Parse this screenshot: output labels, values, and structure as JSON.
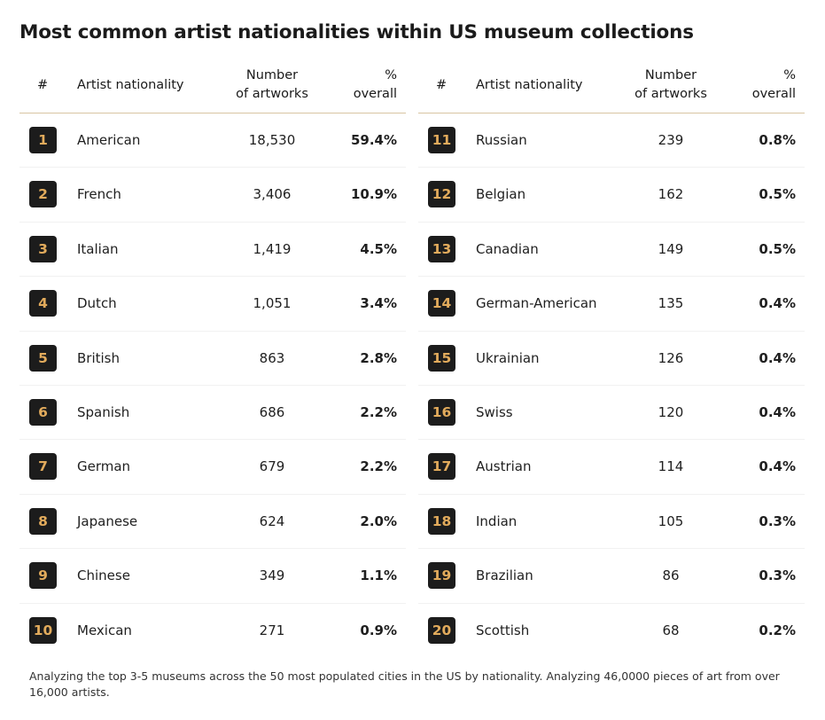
{
  "chart_data": {
    "type": "table",
    "title": "Most common artist nationalities within US museum collections",
    "columns": [
      "#",
      "Artist nationality",
      "Number of artworks",
      "% overall"
    ],
    "column_headers": {
      "rank": "#",
      "nationality": "Artist nationality",
      "count_line1": "Number",
      "count_line2": "of artworks",
      "pct_line1": "%",
      "pct_line2": "overall"
    },
    "rows": [
      {
        "rank": "1",
        "nationality": "American",
        "count": "18,530",
        "pct": "59.4%"
      },
      {
        "rank": "2",
        "nationality": "French",
        "count": "3,406",
        "pct": "10.9%"
      },
      {
        "rank": "3",
        "nationality": "Italian",
        "count": "1,419",
        "pct": "4.5%"
      },
      {
        "rank": "4",
        "nationality": "Dutch",
        "count": "1,051",
        "pct": "3.4%"
      },
      {
        "rank": "5",
        "nationality": "British",
        "count": "863",
        "pct": "2.8%"
      },
      {
        "rank": "6",
        "nationality": "Spanish",
        "count": "686",
        "pct": "2.2%"
      },
      {
        "rank": "7",
        "nationality": "German",
        "count": "679",
        "pct": "2.2%"
      },
      {
        "rank": "8",
        "nationality": "Japanese",
        "count": "624",
        "pct": "2.0%"
      },
      {
        "rank": "9",
        "nationality": "Chinese",
        "count": "349",
        "pct": "1.1%"
      },
      {
        "rank": "10",
        "nationality": "Mexican",
        "count": "271",
        "pct": "0.9%"
      },
      {
        "rank": "11",
        "nationality": "Russian",
        "count": "239",
        "pct": "0.8%"
      },
      {
        "rank": "12",
        "nationality": "Belgian",
        "count": "162",
        "pct": "0.5%"
      },
      {
        "rank": "13",
        "nationality": "Canadian",
        "count": "149",
        "pct": "0.5%"
      },
      {
        "rank": "14",
        "nationality": "German-American",
        "count": "135",
        "pct": "0.4%"
      },
      {
        "rank": "15",
        "nationality": "Ukrainian",
        "count": "126",
        "pct": "0.4%"
      },
      {
        "rank": "16",
        "nationality": "Swiss",
        "count": "120",
        "pct": "0.4%"
      },
      {
        "rank": "17",
        "nationality": "Austrian",
        "count": "114",
        "pct": "0.4%"
      },
      {
        "rank": "18",
        "nationality": "Indian",
        "count": "105",
        "pct": "0.3%"
      },
      {
        "rank": "19",
        "nationality": "Brazilian",
        "count": "86",
        "pct": "0.3%"
      },
      {
        "rank": "20",
        "nationality": "Scottish",
        "count": "68",
        "pct": "0.2%"
      }
    ],
    "footnote": "Analyzing the top 3-5 museums across the 50 most populated cities in the US by nationality. Analyzing 46,0000 pieces of art from over 16,000 artists."
  },
  "colors": {
    "badge_background": "#1c1c1c",
    "badge_text": "#e2ab5c",
    "header_rule": "#d8c5a2"
  }
}
